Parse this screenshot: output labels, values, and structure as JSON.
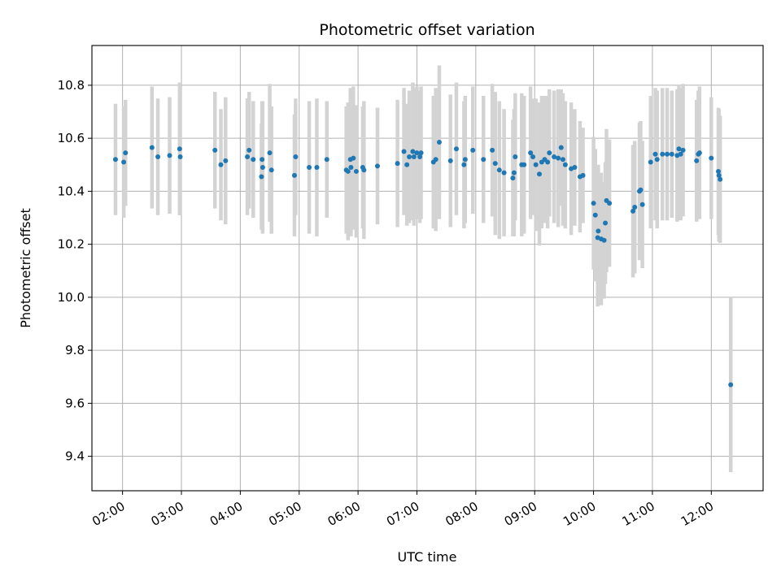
{
  "chart_data": {
    "type": "scatter",
    "title": "Photometric offset variation",
    "xlabel": "UTC time",
    "ylabel": "Photometric offset",
    "x_tick_labels": [
      "02:00",
      "03:00",
      "04:00",
      "05:00",
      "06:00",
      "07:00",
      "08:00",
      "09:00",
      "10:00",
      "11:00",
      "12:00"
    ],
    "y_tick_labels": [
      "9.4",
      "9.6",
      "9.8",
      "10.0",
      "10.2",
      "10.4",
      "10.6",
      "10.8"
    ],
    "x_unit": "UTC hour",
    "xlim": [
      1.48,
      12.88
    ],
    "ylim": [
      9.27,
      10.95
    ],
    "grid": true,
    "colors": {
      "points": "#1f77b4",
      "error_bars": "#d3d3d3",
      "grid": "#b0b0b0"
    },
    "series": [
      {
        "x": [
          1.88,
          2.02,
          2.05,
          2.5,
          2.6,
          2.8,
          2.97,
          2.98,
          3.57,
          3.67,
          3.75,
          4.12,
          4.15,
          4.22,
          4.36,
          4.37,
          4.38,
          4.5,
          4.53,
          4.92,
          4.94,
          5.17,
          5.3,
          5.47,
          5.8,
          5.83,
          5.87,
          5.88,
          5.92,
          5.97,
          6.08,
          6.1,
          6.33,
          6.67,
          6.78,
          6.83,
          6.87,
          6.93,
          6.95,
          7.0,
          7.05,
          7.07,
          7.28,
          7.32,
          7.38,
          7.57,
          7.67,
          7.8,
          7.82,
          7.95,
          8.13,
          8.28,
          8.33,
          8.4,
          8.48,
          8.63,
          8.65,
          8.67,
          8.78,
          8.82,
          8.93,
          8.97,
          9.02,
          9.08,
          9.12,
          9.17,
          9.22,
          9.25,
          9.33,
          9.4,
          9.45,
          9.48,
          9.52,
          9.62,
          9.68,
          9.77,
          9.82,
          10.0,
          10.03,
          10.07,
          10.08,
          10.13,
          10.18,
          10.2,
          10.22,
          10.27,
          10.67,
          10.7,
          10.78,
          10.8,
          10.83,
          10.97,
          11.05,
          11.08,
          11.17,
          11.25,
          11.33,
          11.42,
          11.45,
          11.48,
          11.52,
          11.75,
          11.78,
          11.8,
          12.0,
          12.12,
          12.13,
          12.15,
          12.33
        ],
        "y": [
          10.52,
          10.51,
          10.545,
          10.565,
          10.53,
          10.535,
          10.56,
          10.53,
          10.555,
          10.5,
          10.515,
          10.53,
          10.555,
          10.52,
          10.455,
          10.52,
          10.49,
          10.545,
          10.48,
          10.46,
          10.53,
          10.49,
          10.49,
          10.52,
          10.48,
          10.475,
          10.52,
          10.49,
          10.525,
          10.475,
          10.49,
          10.48,
          10.495,
          10.505,
          10.55,
          10.5,
          10.53,
          10.55,
          10.53,
          10.545,
          10.53,
          10.545,
          10.51,
          10.52,
          10.585,
          10.515,
          10.56,
          10.5,
          10.52,
          10.555,
          10.52,
          10.555,
          10.505,
          10.48,
          10.47,
          10.45,
          10.47,
          10.53,
          10.5,
          10.5,
          10.545,
          10.53,
          10.5,
          10.465,
          10.51,
          10.52,
          10.51,
          10.545,
          10.53,
          10.525,
          10.565,
          10.52,
          10.5,
          10.485,
          10.49,
          10.455,
          10.46,
          10.355,
          10.31,
          10.225,
          10.25,
          10.22,
          10.215,
          10.28,
          10.365,
          10.355,
          10.325,
          10.34,
          10.4,
          10.405,
          10.35,
          10.51,
          10.54,
          10.52,
          10.54,
          10.54,
          10.54,
          10.535,
          10.56,
          10.54,
          10.555,
          10.515,
          10.54,
          10.545,
          10.525,
          10.475,
          10.46,
          10.445,
          9.67
        ],
        "yerr": [
          0.21,
          0.21,
          0.2,
          0.23,
          0.22,
          0.22,
          0.25,
          0.22,
          0.22,
          0.21,
          0.24,
          0.22,
          0.22,
          0.22,
          0.2,
          0.22,
          0.25,
          0.26,
          0.24,
          0.23,
          0.22,
          0.25,
          0.26,
          0.22,
          0.24,
          0.26,
          0.27,
          0.26,
          0.27,
          0.25,
          0.23,
          0.26,
          0.22,
          0.24,
          0.24,
          0.23,
          0.25,
          0.26,
          0.26,
          0.25,
          0.25,
          0.25,
          0.25,
          0.27,
          0.29,
          0.25,
          0.25,
          0.24,
          0.24,
          0.24,
          0.24,
          0.25,
          0.27,
          0.26,
          0.24,
          0.22,
          0.24,
          0.24,
          0.27,
          0.26,
          0.25,
          0.22,
          0.25,
          0.27,
          0.25,
          0.24,
          0.25,
          0.24,
          0.25,
          0.26,
          0.22,
          0.25,
          0.24,
          0.25,
          0.22,
          0.21,
          0.18,
          0.25,
          0.25,
          0.26,
          0.25,
          0.25,
          0.22,
          0.23,
          0.27,
          0.24,
          0.25,
          0.25,
          0.26,
          0.26,
          0.24,
          0.25,
          0.25,
          0.26,
          0.25,
          0.25,
          0.24,
          0.25,
          0.24,
          0.25,
          0.25,
          0.23,
          0.24,
          0.25,
          0.23,
          0.24,
          0.25,
          0.24,
          0.33
        ]
      }
    ]
  }
}
